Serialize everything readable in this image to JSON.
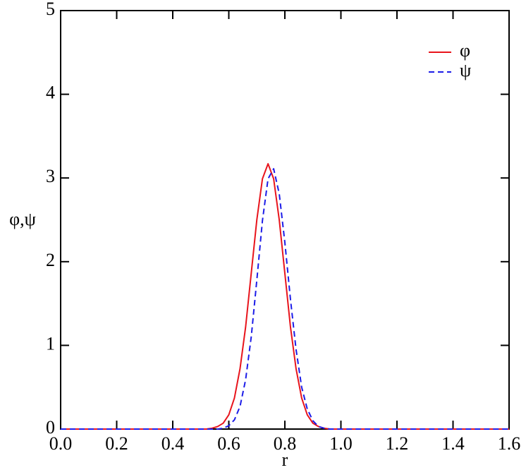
{
  "chart_data": {
    "type": "line",
    "x_label": "r",
    "y_label": "φ,ψ",
    "x": [
      0,
      0.1,
      0.2,
      0.3,
      0.4,
      0.5,
      0.52,
      0.54,
      0.56,
      0.58,
      0.6,
      0.62,
      0.64,
      0.66,
      0.68,
      0.7,
      0.72,
      0.74,
      0.76,
      0.78,
      0.8,
      0.82,
      0.84,
      0.86,
      0.88,
      0.9,
      0.92,
      0.94,
      0.96,
      0.98,
      1.0,
      1.2,
      1.4,
      1.6
    ],
    "series": [
      {
        "name": "φ",
        "color": "#e8141c",
        "linestyle": "solid",
        "values": [
          0,
          0,
          0,
          0,
          0,
          0,
          0,
          0.01,
          0.03,
          0.07,
          0.17,
          0.37,
          0.72,
          1.22,
          1.86,
          2.5,
          2.99,
          3.17,
          2.99,
          2.5,
          1.86,
          1.22,
          0.72,
          0.37,
          0.17,
          0.07,
          0.03,
          0.01,
          0,
          0,
          0,
          0,
          0,
          0
        ]
      },
      {
        "name": "ψ",
        "color": "#1c1ce8",
        "linestyle": "dashed",
        "values": [
          0,
          0,
          0,
          0,
          0,
          0,
          0,
          0,
          0,
          0.01,
          0.04,
          0.11,
          0.27,
          0.59,
          1.1,
          1.78,
          2.49,
          2.99,
          3.11,
          2.81,
          2.23,
          1.55,
          0.95,
          0.5,
          0.24,
          0.1,
          0.03,
          0.01,
          0,
          0,
          0,
          0,
          0,
          0
        ]
      }
    ],
    "xlim": [
      0,
      1.6
    ],
    "ylim": [
      0,
      5
    ],
    "xticks": [
      {
        "value": 0,
        "label": "0.0"
      },
      0.2,
      0.4,
      0.6,
      0.8,
      {
        "value": 1,
        "label": "1.0"
      },
      1.2,
      1.4,
      1.6
    ],
    "yticks": [
      0,
      1,
      2,
      3,
      4,
      5
    ],
    "grid": false,
    "legend": "upper-right"
  }
}
